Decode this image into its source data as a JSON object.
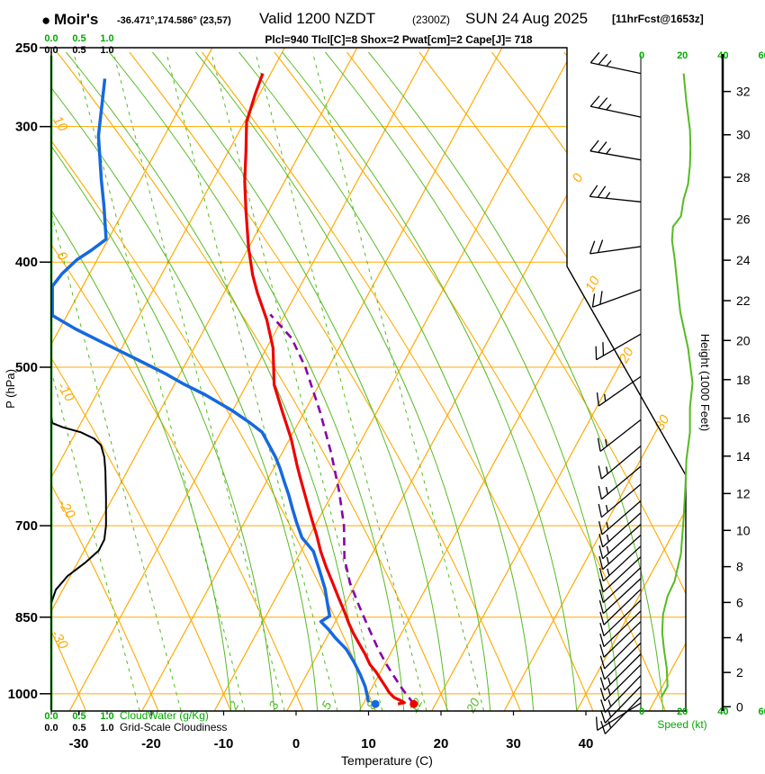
{
  "header": {
    "bullet": "●",
    "station": "Moir's",
    "coords": "-36.471°,174.586° (23,57)",
    "valid_main": "Valid 1200 NZDT",
    "valid_z": "(2300Z)",
    "valid_date": "SUN 24 Aug 2025",
    "fcst_tag": "[11hrFcst@1653z]",
    "stats_line": "Plcl=940 Tlcl[C]=8 Shox=2 Pwat[cm]=2 Cape[J]= 718"
  },
  "colors": {
    "grid_orange": "#FFAA00",
    "grid_green": "#55BB22",
    "scale_green": "#00AA00",
    "temp_red": "#EE0000",
    "dew_blue": "#1569E0",
    "parcel_purple": "#8800AA",
    "stats_crimson": "#BB1166",
    "black": "#000000"
  },
  "chart_data": {
    "type": "line",
    "subtype": "skew-t-log-p-sounding",
    "pressure_axis": {
      "label": "P (hPa)",
      "ticks": [
        250,
        300,
        400,
        500,
        700,
        850,
        1000
      ]
    },
    "temperature_axis": {
      "label": "Temperature (C)",
      "ticks": [
        -30,
        -20,
        -10,
        0,
        10,
        20,
        30,
        40
      ]
    },
    "height_axis": {
      "label": "Height (1000 Feet)",
      "ticks": [
        0,
        2,
        4,
        6,
        8,
        10,
        12,
        14,
        16,
        18,
        20,
        22,
        24,
        26,
        28,
        30,
        32
      ]
    },
    "speed_axis": {
      "label": "Speed (kt)",
      "ticks": [
        0,
        20,
        40,
        60
      ]
    },
    "cloud_scale": {
      "values": [
        "0.0",
        "0.5",
        "1.0"
      ],
      "green_label": "CloudWater (g/Kg)",
      "black_label": "Grid-Scale Cloudiness"
    },
    "isotherm_labels": [
      {
        "v": 0,
        "y": 200
      },
      {
        "v": 10,
        "y": 318
      },
      {
        "v": 20,
        "y": 397
      },
      {
        "v": 30,
        "y": 472
      }
    ],
    "adiabat_labels": [
      {
        "v": "10",
        "x": 63,
        "y": 140
      },
      {
        "v": "0",
        "x": 65,
        "y": 287
      },
      {
        "v": "-10",
        "x": 69,
        "y": 438
      },
      {
        "v": "-20",
        "x": 70,
        "y": 568
      },
      {
        "v": "-30",
        "x": 62,
        "y": 713
      }
    ],
    "mixing_ratio_lines": [
      {
        "label": "",
        "t": -22.2
      },
      {
        "label": "",
        "t": -16.5
      },
      {
        "label": "2",
        "t": -7.7
      },
      {
        "label": "3",
        "t": -2.2
      },
      {
        "label": "5",
        "t": 5.1
      },
      {
        "label": "8",
        "t": 11.3
      },
      {
        "label": "12",
        "t": 17.4
      },
      {
        "label": "20",
        "t": 25.3
      }
    ],
    "series": {
      "temperature_c": [
        [
          268,
          -51.1
        ],
        [
          280,
          -50.6
        ],
        [
          297,
          -49.7
        ],
        [
          316,
          -47.6
        ],
        [
          337,
          -45.5
        ],
        [
          359,
          -43.1
        ],
        [
          388,
          -40.0
        ],
        [
          411,
          -37.4
        ],
        [
          427,
          -35.4
        ],
        [
          452,
          -32.1
        ],
        [
          480,
          -29.1
        ],
        [
          519,
          -26.2
        ],
        [
          550,
          -23.0
        ],
        [
          582,
          -19.8
        ],
        [
          617,
          -16.9
        ],
        [
          635,
          -15.4
        ],
        [
          653,
          -13.9
        ],
        [
          673,
          -12.3
        ],
        [
          692,
          -10.8
        ],
        [
          715,
          -9.0
        ],
        [
          739,
          -7.3
        ],
        [
          765,
          -5.3
        ],
        [
          790,
          -3.3
        ],
        [
          815,
          -1.4
        ],
        [
          840,
          0.5
        ],
        [
          860,
          1.9
        ],
        [
          880,
          3.4
        ],
        [
          900,
          5.0
        ],
        [
          920,
          6.6
        ],
        [
          940,
          8.0
        ],
        [
          955,
          9.4
        ],
        [
          970,
          10.6
        ],
        [
          985,
          11.8
        ],
        [
          998,
          12.8
        ],
        [
          1008,
          13.8
        ],
        [
          1015,
          15.0
        ],
        [
          1019,
          15.6
        ],
        [
          1022,
          14.8
        ]
      ],
      "dewpoint_c": [
        [
          271,
          -72.5
        ],
        [
          306,
          -69.1
        ],
        [
          336,
          -65.4
        ],
        [
          355,
          -63.1
        ],
        [
          381,
          -60.3
        ],
        [
          390,
          -61.5
        ],
        [
          398,
          -62.8
        ],
        [
          410,
          -63.8
        ],
        [
          421,
          -64.2
        ],
        [
          448,
          -62.0
        ],
        [
          461,
          -57.8
        ],
        [
          476,
          -52.5
        ],
        [
          491,
          -47.3
        ],
        [
          507,
          -42.0
        ],
        [
          518,
          -38.8
        ],
        [
          530,
          -35.0
        ],
        [
          548,
          -30.1
        ],
        [
          563,
          -26.6
        ],
        [
          574,
          -24.3
        ],
        [
          605,
          -20.6
        ],
        [
          620,
          -19.1
        ],
        [
          638,
          -17.5
        ],
        [
          656,
          -15.9
        ],
        [
          675,
          -14.4
        ],
        [
          695,
          -12.8
        ],
        [
          718,
          -10.9
        ],
        [
          739,
          -8.3
        ],
        [
          770,
          -6.0
        ],
        [
          800,
          -3.9
        ],
        [
          830,
          -2.2
        ],
        [
          848,
          -1.2
        ],
        [
          858,
          -2.0
        ],
        [
          872,
          -0.4
        ],
        [
          888,
          1.2
        ],
        [
          910,
          3.6
        ],
        [
          935,
          5.6
        ],
        [
          960,
          7.4
        ],
        [
          985,
          9.0
        ],
        [
          1005,
          10.0
        ],
        [
          1018,
          10.6
        ]
      ],
      "parcel_c": [
        [
          1022,
          17.0
        ],
        [
          990,
          14.3
        ],
        [
          960,
          11.9
        ],
        [
          940,
          10.3
        ],
        [
          910,
          8.0
        ],
        [
          870,
          5.1
        ],
        [
          830,
          2.1
        ],
        [
          790,
          -0.9
        ],
        [
          750,
          -3.5
        ],
        [
          700,
          -6.0
        ],
        [
          650,
          -9.3
        ],
        [
          600,
          -13.2
        ],
        [
          550,
          -17.8
        ],
        [
          500,
          -23.2
        ],
        [
          470,
          -27.3
        ],
        [
          447,
          -32.0
        ]
      ],
      "cloudiness_frac": [
        [
          1035,
          0
        ],
        [
          825,
          0
        ],
        [
          802,
          0.08
        ],
        [
          779,
          0.29
        ],
        [
          757,
          0.61
        ],
        [
          738,
          0.85
        ],
        [
          721,
          0.95
        ],
        [
          700,
          0.98
        ],
        [
          660,
          0.98
        ],
        [
          623,
          0.97
        ],
        [
          605,
          0.95
        ],
        [
          590,
          0.89
        ],
        [
          582,
          0.77
        ],
        [
          574,
          0.53
        ],
        [
          568,
          0.21
        ],
        [
          563,
          0.02
        ],
        [
          555,
          0
        ]
      ],
      "cloud_water_gkg": [
        [
          1035,
          0
        ],
        [
          258,
          0
        ]
      ],
      "wind_speed_kt": [
        [
          268,
          20.6
        ],
        [
          284,
          21.9
        ],
        [
          302,
          23.7
        ],
        [
          314,
          24.0
        ],
        [
          326,
          23.7
        ],
        [
          339,
          22.8
        ],
        [
          350,
          20.6
        ],
        [
          363,
          19.3
        ],
        [
          371,
          15.4
        ],
        [
          382,
          14.9
        ],
        [
          397,
          16.2
        ],
        [
          412,
          17.1
        ],
        [
          445,
          19.0
        ],
        [
          480,
          22.8
        ],
        [
          517,
          25.0
        ],
        [
          545,
          23.7
        ],
        [
          574,
          23.7
        ],
        [
          608,
          22.0
        ],
        [
          643,
          21.5
        ],
        [
          689,
          20.6
        ],
        [
          743,
          19.3
        ],
        [
          787,
          16.2
        ],
        [
          813,
          12.7
        ],
        [
          845,
          10.5
        ],
        [
          878,
          10.1
        ],
        [
          912,
          11.0
        ],
        [
          947,
          12.3
        ],
        [
          984,
          12.7
        ],
        [
          1008,
          9.6
        ]
      ],
      "surface_dots": {
        "temp": {
          "p": 1022,
          "t": 17.0
        },
        "dew": {
          "p": 1022,
          "t": 11.7
        }
      }
    },
    "wind_barbs": [
      [
        268,
        25,
        12
      ],
      [
        294,
        25,
        12
      ],
      [
        322,
        25,
        10
      ],
      [
        352,
        25,
        6
      ],
      [
        387,
        20,
        -8
      ],
      [
        424,
        20,
        -20
      ],
      [
        466,
        20,
        -30
      ],
      [
        510,
        15,
        -35
      ],
      [
        559,
        15,
        -38
      ],
      [
        591,
        15,
        -40
      ],
      [
        617,
        15,
        -40
      ],
      [
        641,
        15,
        -40
      ],
      [
        664,
        15,
        -41
      ],
      [
        681,
        15,
        -42
      ],
      [
        698,
        15,
        -42
      ],
      [
        714,
        15,
        -42
      ],
      [
        731,
        15,
        -43
      ],
      [
        748,
        10,
        -43
      ],
      [
        765,
        10,
        -43
      ],
      [
        783,
        10,
        -43
      ],
      [
        801,
        10,
        -44
      ],
      [
        820,
        10,
        -44
      ],
      [
        839,
        10,
        -44
      ],
      [
        858,
        10,
        -44
      ],
      [
        878,
        10,
        -45
      ],
      [
        898,
        10,
        -45
      ],
      [
        919,
        15,
        -45
      ],
      [
        940,
        15,
        -45
      ],
      [
        962,
        15,
        -46
      ],
      [
        984,
        15,
        -46
      ],
      [
        1007,
        15,
        -46
      ],
      [
        1020,
        10,
        -32
      ]
    ]
  }
}
